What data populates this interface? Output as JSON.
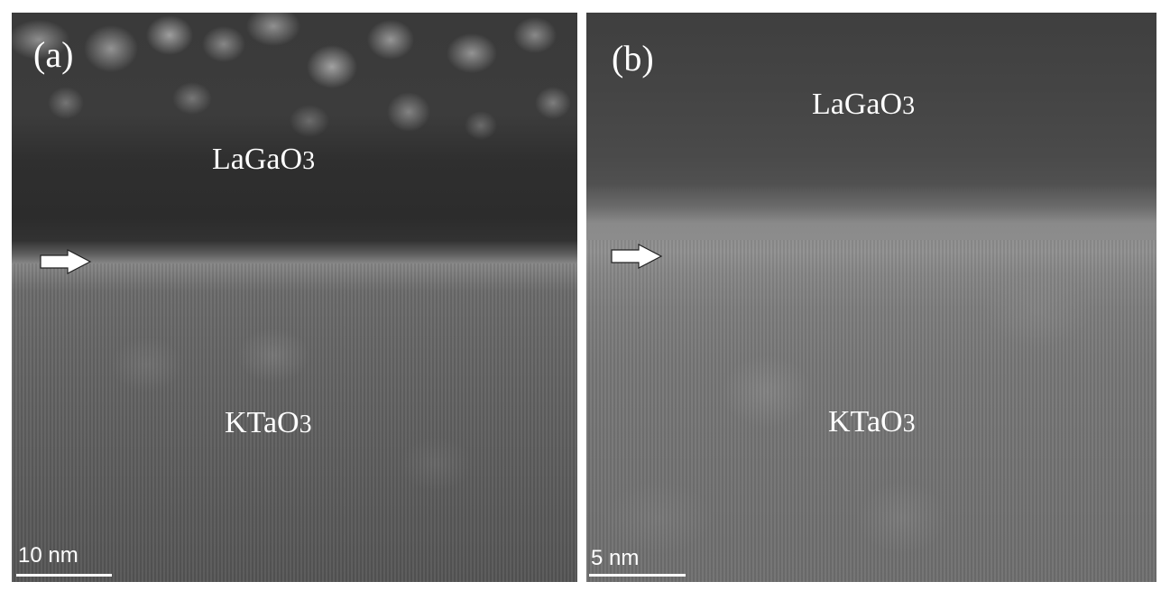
{
  "panels": [
    {
      "label": "(a)",
      "top_material": {
        "base": "LaGaO",
        "sub": "3"
      },
      "bottom_material": {
        "base": "KTaO",
        "sub": "3"
      },
      "scale_bar": "10 nm",
      "arrow_icon": "right-arrow-icon"
    },
    {
      "label": "(b)",
      "top_material": {
        "base": "LaGaO",
        "sub": "3"
      },
      "bottom_material": {
        "base": "KTaO",
        "sub": "3"
      },
      "scale_bar": "5 nm",
      "arrow_icon": "right-arrow-icon"
    }
  ],
  "colors": {
    "text": "#ffffff",
    "background": "#ffffff"
  }
}
